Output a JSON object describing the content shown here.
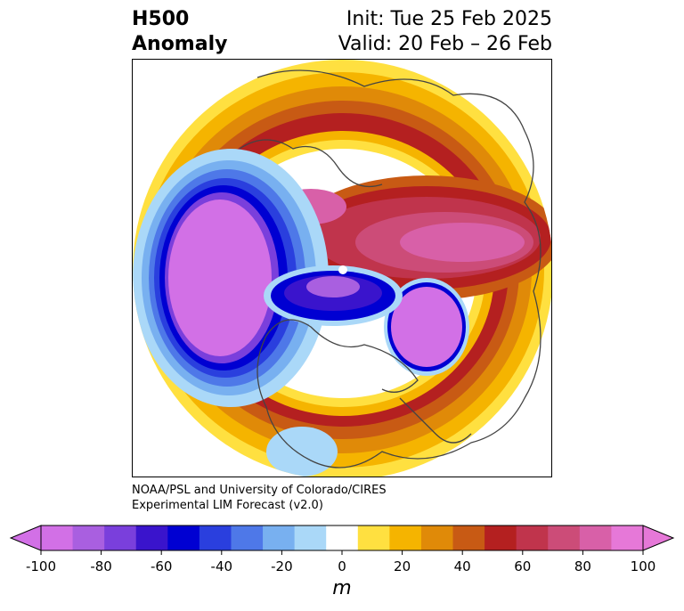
{
  "header": {
    "title_line1": "H500",
    "title_line2": "Anomaly",
    "init_label": "Init: Tue 25 Feb 2025",
    "valid_label": "Valid: 20 Feb – 26 Feb"
  },
  "credit": {
    "line1": "NOAA/PSL and University of Colorado/CIRES",
    "line2": "Experimental LIM Forecast (v2.0)"
  },
  "colorbar": {
    "unit": "m",
    "tick_labels": [
      "-100",
      "-80",
      "-60",
      "-40",
      "-20",
      "0",
      "20",
      "40",
      "60",
      "80",
      "100"
    ],
    "levels": [
      -100,
      -90,
      -80,
      -70,
      -60,
      -50,
      -40,
      -30,
      -20,
      -10,
      10,
      20,
      30,
      40,
      50,
      60,
      70,
      80,
      90,
      100
    ],
    "colors": [
      "#d270e6",
      "#a95fe0",
      "#7a3fdc",
      "#3a14cc",
      "#0000d2",
      "#2a3fde",
      "#4e78e8",
      "#78b0f0",
      "#aad8f8",
      "#ffffff",
      "#ffe040",
      "#f5b400",
      "#e08a08",
      "#c85a14",
      "#b42020",
      "#c0344c",
      "#cc4c78",
      "#d860a8",
      "#e678d8"
    ],
    "extend_low_color": "#d270e6",
    "extend_high_color": "#e678d8"
  }
}
